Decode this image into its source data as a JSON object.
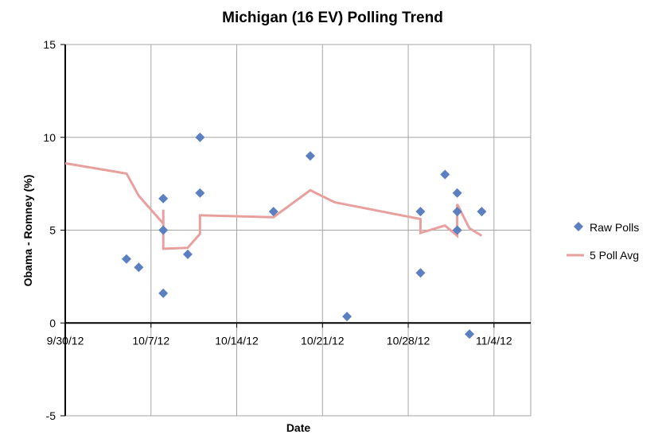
{
  "chart_data": {
    "type": "scatter",
    "title": "Michigan (16 EV) Polling Trend",
    "xlabel": "Date",
    "ylabel": "Obama - Romney (%)",
    "xlim": [
      "9/30/12",
      "11/7/12"
    ],
    "ylim": [
      -5,
      15
    ],
    "x_ticks": [
      "9/30/12",
      "10/7/12",
      "10/14/12",
      "10/21/12",
      "10/28/12",
      "11/4/12"
    ],
    "y_ticks": [
      -5,
      0,
      5,
      10,
      15
    ],
    "grid": true,
    "legend_position": "right",
    "series": [
      {
        "name": "Raw Polls",
        "type": "scatter",
        "marker": "diamond",
        "color": "#5B7FC1",
        "points": [
          {
            "x": "10/5/12 00:00",
            "y": 3.45
          },
          {
            "x": "10/6/12 00:00",
            "y": 3.0
          },
          {
            "x": "10/8/12 00:00",
            "y": 6.7
          },
          {
            "x": "10/8/12 00:00",
            "y": 5.0
          },
          {
            "x": "10/8/12 00:00",
            "y": 1.6
          },
          {
            "x": "10/10/12 00:00",
            "y": 3.7
          },
          {
            "x": "10/11/12 00:00",
            "y": 10.0
          },
          {
            "x": "10/11/12 00:00",
            "y": 7.0
          },
          {
            "x": "10/17/12 00:00",
            "y": 6.0
          },
          {
            "x": "10/20/12 00:00",
            "y": 9.0
          },
          {
            "x": "10/23/12 00:00",
            "y": 0.35
          },
          {
            "x": "10/29/12 00:00",
            "y": 6.0
          },
          {
            "x": "10/29/12 00:00",
            "y": 2.7
          },
          {
            "x": "10/31/12 00:00",
            "y": 8.0
          },
          {
            "x": "11/1/12 00:00",
            "y": 7.0
          },
          {
            "x": "11/1/12 00:00",
            "y": 6.0
          },
          {
            "x": "11/1/12 00:00",
            "y": 5.0
          },
          {
            "x": "11/2/12 00:00",
            "y": -0.6
          },
          {
            "x": "11/3/12 00:00",
            "y": 6.0
          }
        ]
      },
      {
        "name": "5 Poll Avg",
        "type": "line",
        "color": "#E8A09E",
        "points": [
          {
            "x": "9/30/12 00:00",
            "y": 8.6
          },
          {
            "x": "10/5/12 00:00",
            "y": 8.05
          },
          {
            "x": "10/6/12 00:00",
            "y": 6.85
          },
          {
            "x": "10/8/12 00:00",
            "y": 5.35
          },
          {
            "x": "10/8/12 00:00",
            "y": 6.1
          },
          {
            "x": "10/8/12 00:00",
            "y": 4.0
          },
          {
            "x": "10/10/12 00:00",
            "y": 4.05
          },
          {
            "x": "10/11/12 00:00",
            "y": 4.8
          },
          {
            "x": "10/11/12 00:00",
            "y": 5.8
          },
          {
            "x": "10/17/12 00:00",
            "y": 5.7
          },
          {
            "x": "10/20/12 00:00",
            "y": 7.15
          },
          {
            "x": "10/22/12 00:00",
            "y": 6.5
          },
          {
            "x": "10/29/12 00:00",
            "y": 5.6
          },
          {
            "x": "10/29/12 00:00",
            "y": 4.85
          },
          {
            "x": "10/31/12 00:00",
            "y": 5.25
          },
          {
            "x": "11/1/12 00:00",
            "y": 4.7
          },
          {
            "x": "11/1/12 00:00",
            "y": 6.4
          },
          {
            "x": "11/2/12 00:00",
            "y": 5.1
          },
          {
            "x": "11/3/12 00:00",
            "y": 4.7
          }
        ]
      }
    ]
  }
}
